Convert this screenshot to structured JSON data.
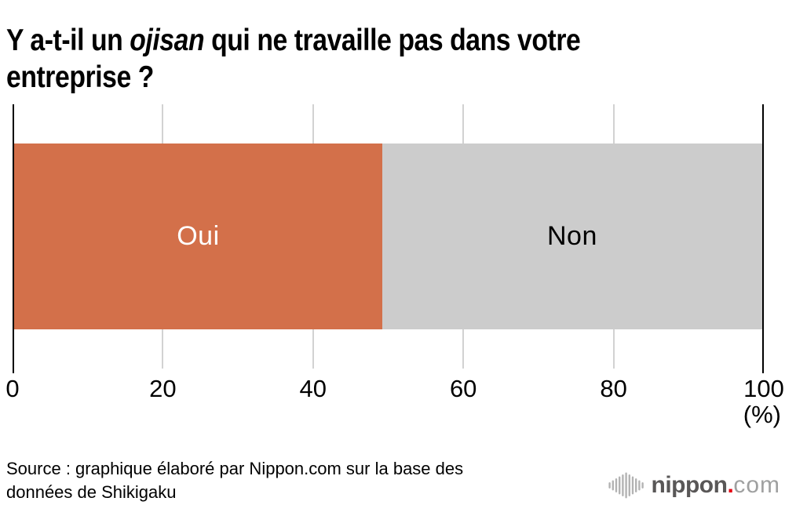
{
  "title": {
    "line1_pre": "Y a-t-il un ",
    "line1_italic": "ojisan",
    "line1_post": " qui ne travaille pas dans votre",
    "line2": "entreprise ?"
  },
  "chart_data": {
    "type": "bar",
    "orientation": "horizontal_stacked",
    "title": "Y a-t-il un ojisan qui ne travaille pas dans votre entreprise ?",
    "categories": [
      "Oui",
      "Non"
    ],
    "values": [
      49.2,
      50.8
    ],
    "colors": [
      "#d3704a",
      "#cccccc"
    ],
    "label_colors": [
      "#ffffff",
      "#000000"
    ],
    "xlim": [
      0,
      100
    ],
    "x_tick_labels": [
      "0",
      "20",
      "40",
      "60",
      "80",
      "100"
    ],
    "unit_label": "(%)",
    "grid": true,
    "gridline_color": "#d2d2d2",
    "legend_position": "none"
  },
  "source": {
    "lines": [
      "Source : graphique élaboré par Nippon.com sur la base des",
      "données de Shikigaku"
    ]
  },
  "logo": {
    "icon": "soundwave-bars-icon",
    "brand": "nippon",
    "dot": ".",
    "tld": "com",
    "brand_color": "#595757",
    "dot_color": "#e60012",
    "tld_color": "#9fa0a0",
    "icon_color": "#b3b3b3"
  }
}
